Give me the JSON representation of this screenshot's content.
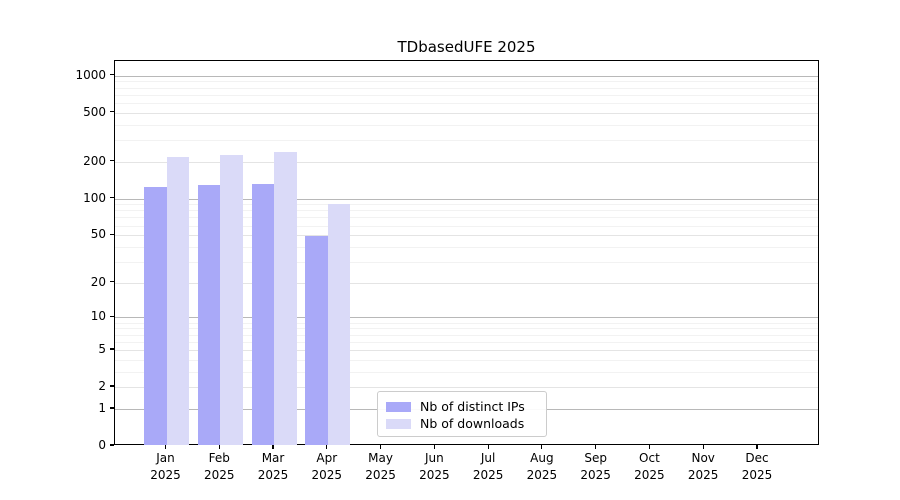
{
  "title": "TDbasedUFE 2025",
  "legend": {
    "items": [
      {
        "label": "Nb of distinct IPs",
        "color": "#a9a9f8"
      },
      {
        "label": "Nb of downloads",
        "color": "#dadaf8"
      }
    ]
  },
  "axis": {
    "y_tick_labels": [
      1000,
      500,
      200,
      100,
      50,
      20,
      10,
      5,
      2,
      1,
      0
    ],
    "x_tick_months": [
      "Jan",
      "Feb",
      "Mar",
      "Apr",
      "May",
      "Jun",
      "Jul",
      "Aug",
      "Sep",
      "Oct",
      "Nov",
      "Dec"
    ],
    "x_tick_year": "2025"
  },
  "chart_data": {
    "type": "bar",
    "title": "TDbasedUFE 2025",
    "categories": [
      "Jan 2025",
      "Feb 2025",
      "Mar 2025",
      "Apr 2025",
      "May 2025",
      "Jun 2025",
      "Jul 2025",
      "Aug 2025",
      "Sep 2025",
      "Oct 2025",
      "Nov 2025",
      "Dec 2025"
    ],
    "series": [
      {
        "name": "Nb of distinct IPs",
        "color": "#a9a9f8",
        "values": [
          125,
          128,
          131,
          49,
          0,
          0,
          0,
          0,
          0,
          0,
          0,
          0
        ]
      },
      {
        "name": "Nb of downloads",
        "color": "#dadaf8",
        "values": [
          220,
          227,
          238,
          90,
          0,
          0,
          0,
          0,
          0,
          0,
          0,
          0
        ]
      }
    ],
    "xlabel": "",
    "ylabel": "",
    "yscale": "log1p",
    "yticks": [
      0,
      1,
      2,
      5,
      10,
      20,
      50,
      100,
      200,
      500,
      1000
    ],
    "ylim": [
      0,
      1300
    ],
    "grid": "horizontal",
    "legend_position": "lower center"
  },
  "grid_colors": {
    "decade": "#b8b8b8",
    "major": "#e4e4e4",
    "minor": "#f2f2f2"
  }
}
